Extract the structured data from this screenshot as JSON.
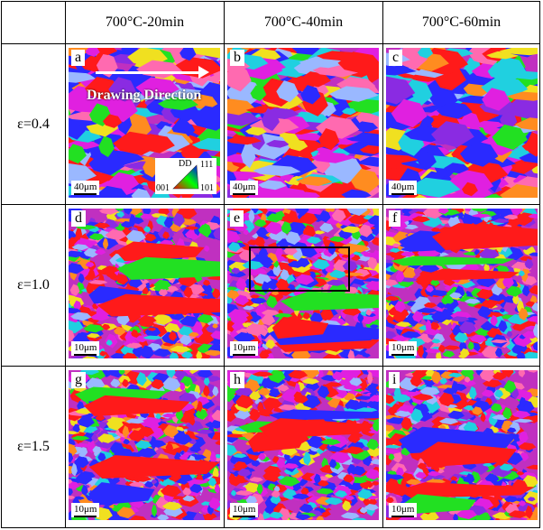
{
  "figure": {
    "columns": [
      "700°C-20min",
      "700°C-40min",
      "700°C-60min"
    ],
    "rows": [
      "ε=0.4",
      "ε=1.0",
      "ε=1.5"
    ],
    "panels": [
      {
        "letter": "a",
        "scale": "40μm",
        "seed": 11,
        "row": 0,
        "col": 0
      },
      {
        "letter": "b",
        "scale": "40μm",
        "seed": 23,
        "row": 0,
        "col": 1
      },
      {
        "letter": "c",
        "scale": "40μm",
        "seed": 37,
        "row": 0,
        "col": 2
      },
      {
        "letter": "d",
        "scale": "10μm",
        "seed": 41,
        "row": 1,
        "col": 0
      },
      {
        "letter": "e",
        "scale": "10μm",
        "seed": 53,
        "row": 1,
        "col": 1
      },
      {
        "letter": "f",
        "scale": "10μm",
        "seed": 67,
        "row": 1,
        "col": 2
      },
      {
        "letter": "g",
        "scale": "10μm",
        "seed": 71,
        "row": 2,
        "col": 0
      },
      {
        "letter": "h",
        "scale": "10μm",
        "seed": 83,
        "row": 2,
        "col": 1
      },
      {
        "letter": "i",
        "scale": "10μm",
        "seed": 97,
        "row": 2,
        "col": 2
      }
    ],
    "annotation": "Drawing Direction",
    "legend": {
      "title": "DD",
      "corner_111": "111",
      "corner_001": "001",
      "corner_101": "101"
    },
    "colors": {
      "red": "#ff1a1a",
      "blue": "#2a2aff",
      "green": "#22e022",
      "magenta": "#e020e0",
      "purple": "#8a2be2",
      "cyan": "#20d0e0",
      "yellow": "#f0e020",
      "pink": "#ff6ab0",
      "orange": "#ff8c20",
      "lightblue": "#9ab8ff"
    }
  }
}
